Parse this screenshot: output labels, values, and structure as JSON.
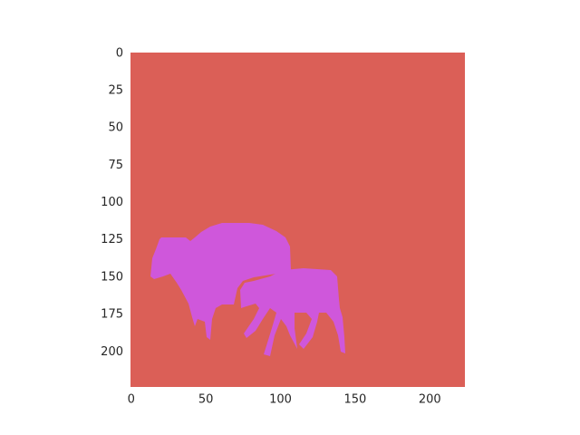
{
  "chart_data": {
    "type": "image",
    "xlim": [
      -0.5,
      223.5
    ],
    "ylim": [
      223.5,
      -0.5
    ],
    "xticks": [
      0,
      50,
      100,
      150,
      200
    ],
    "yticks": [
      0,
      25,
      50,
      75,
      100,
      125,
      150,
      175,
      200
    ],
    "background_color": "#db5f57",
    "mask_color": "#cf57db"
  }
}
